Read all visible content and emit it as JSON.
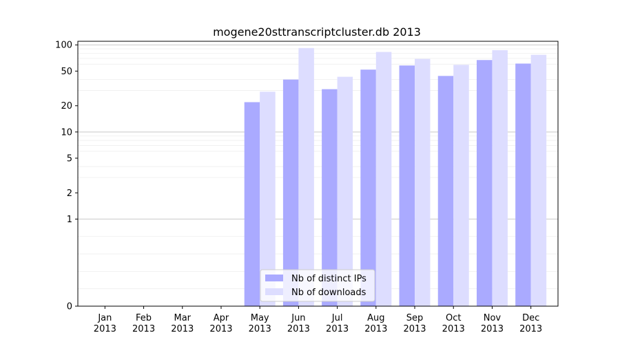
{
  "chart_data": {
    "type": "bar",
    "title": "mogene20sttranscriptcluster.db 2013",
    "xlabel": "",
    "ylabel": "",
    "y_scale": "symlog",
    "ylim": [
      0,
      110
    ],
    "y_ticks": [
      0,
      1,
      2,
      5,
      10,
      20,
      50,
      100
    ],
    "y_tick_labels": [
      "0",
      "1",
      "2",
      "5",
      "10",
      "20",
      "50",
      "100"
    ],
    "categories": [
      "Jan\n2013",
      "Feb\n2013",
      "Mar\n2013",
      "Apr\n2013",
      "May\n2013",
      "Jun\n2013",
      "Jul\n2013",
      "Aug\n2013",
      "Sep\n2013",
      "Oct\n2013",
      "Nov\n2013",
      "Dec\n2013"
    ],
    "series": [
      {
        "name": "Nb of distinct IPs",
        "color": "#aaaaff",
        "values": [
          0,
          0,
          0,
          0,
          22,
          40,
          31,
          52,
          58,
          44,
          67,
          61
        ]
      },
      {
        "name": "Nb of downloads",
        "color": "#ddddff",
        "values": [
          0,
          0,
          0,
          0,
          29,
          92,
          43,
          83,
          69,
          59,
          87,
          77
        ]
      }
    ],
    "grid": "y-major-and-minor",
    "legend_position": "lower center"
  }
}
